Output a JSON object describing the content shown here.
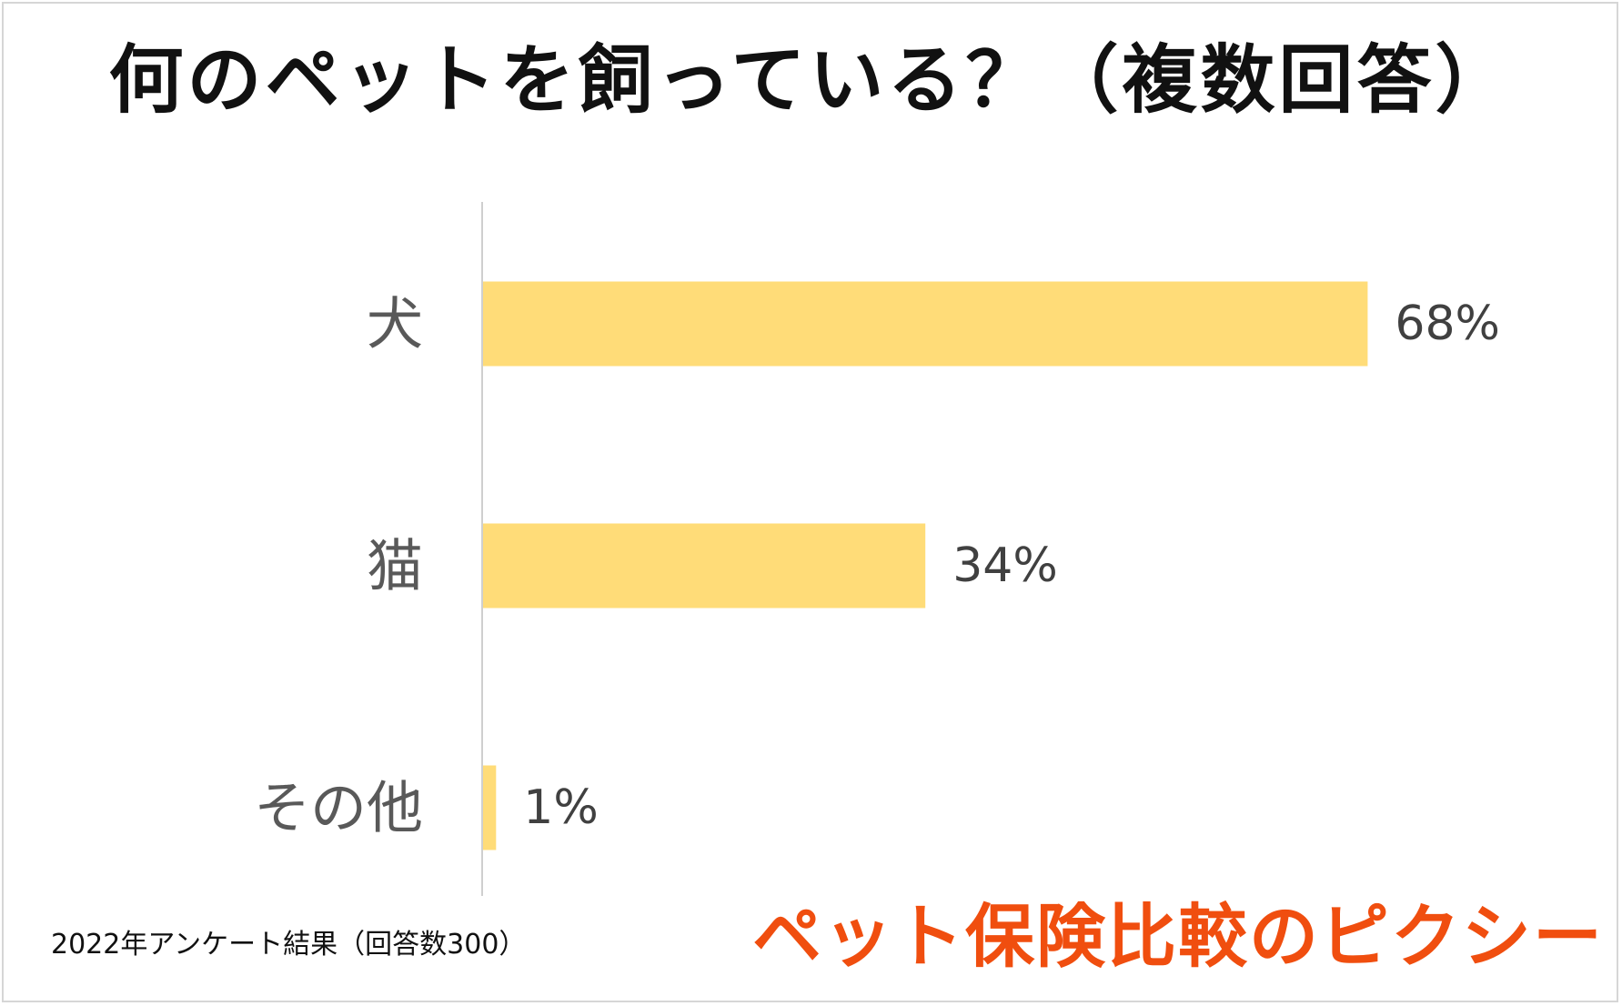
{
  "title": "何のペットを飼っている？（複数回答）",
  "footnote": "2022年アンケート結果（回答数300）",
  "brand": {
    "logo_text": "ペット保険比較のピクシー",
    "color": "#f04e0f"
  },
  "chart_data": {
    "type": "bar",
    "orientation": "horizontal",
    "categories": [
      "犬",
      "猫",
      "その他"
    ],
    "values": [
      68,
      34,
      1
    ],
    "value_labels": [
      "68%",
      "34%",
      "1%"
    ],
    "unit": "%",
    "xlim": [
      0,
      100
    ],
    "bar_color": "#ffdc78",
    "grid": false,
    "legend": "none"
  }
}
